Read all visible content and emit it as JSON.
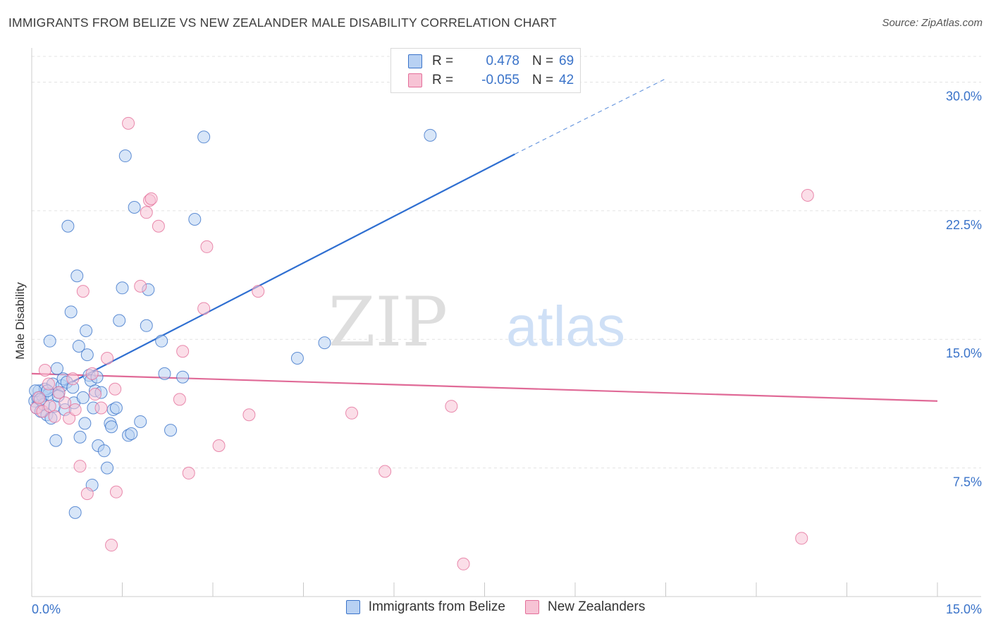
{
  "title": "IMMIGRANTS FROM BELIZE VS NEW ZEALANDER MALE DISABILITY CORRELATION CHART",
  "source": "Source: ZipAtlas.com",
  "watermark": {
    "zip": "ZIP",
    "atlas": "atlas"
  },
  "colors": {
    "blue": "#3a73c9",
    "blue_fill": "#b8d1f3",
    "blue_line": "#2f6fd1",
    "pink": "#e46f9a",
    "pink_fill": "#f7c3d5",
    "pink_line": "#e06a97",
    "grid": "#e3e3e3",
    "axis_text": "#3a73c9"
  },
  "legend_top": {
    "rows": [
      {
        "r_key": "R =",
        "r_value": "0.478",
        "n_key": "N =",
        "n_value": "69"
      },
      {
        "r_key": "R =",
        "r_value": "-0.055",
        "n_key": "N =",
        "n_value": "42"
      }
    ]
  },
  "legend_bottom": {
    "items": [
      {
        "label": "Immigrants from Belize"
      },
      {
        "label": "New Zealanders"
      }
    ]
  },
  "chart_data": {
    "type": "scatter",
    "title": "IMMIGRANTS FROM BELIZE VS NEW ZEALANDER MALE DISABILITY CORRELATION CHART",
    "xlabel": "",
    "ylabel": "Male Disability",
    "xlim": [
      0,
      15
    ],
    "ylim": [
      0,
      31.5
    ],
    "x_tick_labels": [
      "0.0%",
      "15.0%"
    ],
    "y_ticks": [
      7.5,
      15.0,
      22.5,
      30.0
    ],
    "y_tick_labels": [
      "7.5%",
      "15.0%",
      "22.5%",
      "30.0%"
    ],
    "grid": true,
    "legend_position": "top-center",
    "series": [
      {
        "name": "Immigrants from Belize",
        "color": "#3a73c9",
        "r": 0.478,
        "n": 69,
        "trend": {
          "x0": 0,
          "y0": 11.3,
          "x1": 8.0,
          "y1": 25.8,
          "dash_to_x": 10.5,
          "dash_to_y": 30.2
        },
        "points": [
          [
            0.05,
            11.4
          ],
          [
            0.08,
            11.0
          ],
          [
            0.1,
            11.6
          ],
          [
            0.12,
            12.0
          ],
          [
            0.15,
            10.8
          ],
          [
            0.18,
            11.7
          ],
          [
            0.2,
            11.2
          ],
          [
            0.22,
            12.1
          ],
          [
            0.25,
            10.6
          ],
          [
            0.28,
            11.8
          ],
          [
            0.3,
            14.9
          ],
          [
            0.32,
            10.4
          ],
          [
            0.35,
            12.4
          ],
          [
            0.38,
            11.1
          ],
          [
            0.4,
            9.1
          ],
          [
            0.42,
            13.3
          ],
          [
            0.45,
            11.9
          ],
          [
            0.5,
            12.3
          ],
          [
            0.52,
            12.7
          ],
          [
            0.55,
            10.9
          ],
          [
            0.6,
            21.6
          ],
          [
            0.65,
            16.6
          ],
          [
            0.7,
            11.3
          ],
          [
            0.75,
            18.7
          ],
          [
            0.78,
            14.6
          ],
          [
            0.8,
            9.3
          ],
          [
            0.85,
            11.6
          ],
          [
            0.88,
            10.1
          ],
          [
            0.9,
            15.5
          ],
          [
            0.92,
            14.1
          ],
          [
            0.95,
            12.9
          ],
          [
            0.98,
            12.6
          ],
          [
            1.0,
            6.5
          ],
          [
            1.02,
            11.0
          ],
          [
            1.05,
            12.0
          ],
          [
            1.1,
            8.8
          ],
          [
            1.15,
            11.9
          ],
          [
            1.2,
            8.5
          ],
          [
            1.25,
            7.5
          ],
          [
            1.3,
            10.1
          ],
          [
            1.32,
            9.9
          ],
          [
            1.35,
            10.9
          ],
          [
            1.4,
            11.0
          ],
          [
            1.45,
            16.1
          ],
          [
            1.5,
            18.0
          ],
          [
            1.55,
            25.7
          ],
          [
            1.6,
            9.4
          ],
          [
            1.65,
            9.5
          ],
          [
            1.7,
            22.7
          ],
          [
            1.8,
            10.2
          ],
          [
            1.9,
            15.8
          ],
          [
            1.93,
            17.9
          ],
          [
            2.15,
            14.9
          ],
          [
            2.2,
            13.0
          ],
          [
            2.3,
            9.7
          ],
          [
            2.5,
            12.8
          ],
          [
            2.7,
            22.0
          ],
          [
            2.85,
            26.8
          ],
          [
            4.4,
            13.9
          ],
          [
            4.85,
            14.8
          ],
          [
            6.6,
            26.9
          ],
          [
            0.72,
            4.9
          ],
          [
            0.06,
            12.0
          ],
          [
            0.14,
            11.5
          ],
          [
            0.26,
            12.0
          ],
          [
            0.44,
            11.7
          ],
          [
            0.58,
            12.5
          ],
          [
            0.68,
            12.2
          ],
          [
            1.08,
            12.8
          ]
        ]
      },
      {
        "name": "New Zealanders",
        "color": "#e46f9a",
        "r": -0.055,
        "n": 42,
        "trend": {
          "x0": 0,
          "y0": 13.0,
          "x1": 15.0,
          "y1": 11.4
        },
        "points": [
          [
            0.08,
            11.0
          ],
          [
            0.12,
            11.6
          ],
          [
            0.18,
            10.8
          ],
          [
            0.22,
            13.2
          ],
          [
            0.3,
            11.1
          ],
          [
            0.38,
            10.5
          ],
          [
            0.45,
            11.9
          ],
          [
            0.55,
            11.3
          ],
          [
            0.62,
            10.4
          ],
          [
            0.68,
            12.7
          ],
          [
            0.72,
            10.9
          ],
          [
            0.8,
            7.6
          ],
          [
            0.85,
            17.8
          ],
          [
            0.92,
            6.0
          ],
          [
            1.0,
            13.0
          ],
          [
            1.05,
            11.8
          ],
          [
            1.15,
            11.0
          ],
          [
            1.25,
            13.9
          ],
          [
            1.32,
            3.0
          ],
          [
            1.38,
            12.1
          ],
          [
            1.4,
            6.1
          ],
          [
            1.6,
            27.6
          ],
          [
            1.8,
            18.1
          ],
          [
            1.9,
            22.4
          ],
          [
            1.95,
            23.1
          ],
          [
            1.98,
            23.2
          ],
          [
            2.1,
            21.6
          ],
          [
            2.45,
            11.5
          ],
          [
            2.5,
            14.3
          ],
          [
            2.6,
            7.2
          ],
          [
            2.85,
            16.8
          ],
          [
            2.9,
            20.4
          ],
          [
            3.1,
            8.8
          ],
          [
            3.6,
            10.6
          ],
          [
            3.75,
            17.8
          ],
          [
            5.3,
            10.7
          ],
          [
            5.85,
            7.3
          ],
          [
            6.95,
            11.1
          ],
          [
            7.15,
            1.9
          ],
          [
            12.75,
            3.4
          ],
          [
            12.85,
            23.4
          ],
          [
            0.28,
            12.4
          ]
        ]
      }
    ]
  }
}
